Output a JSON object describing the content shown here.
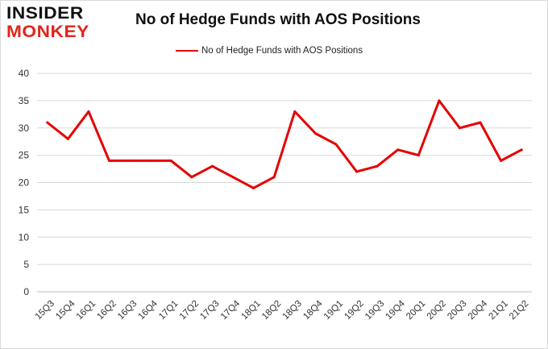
{
  "logo": {
    "line1": "INSIDER",
    "line2": "MONKEY"
  },
  "chart_data": {
    "type": "line",
    "title": "No of Hedge Funds with AOS Positions",
    "xlabel": "",
    "ylabel": "",
    "ylim": [
      0,
      40
    ],
    "yticks": [
      0,
      5,
      10,
      15,
      20,
      25,
      30,
      35,
      40
    ],
    "grid": true,
    "legend_position": "top-center",
    "categories": [
      "15Q3",
      "15Q4",
      "16Q1",
      "16Q2",
      "16Q3",
      "16Q4",
      "17Q1",
      "17Q2",
      "17Q3",
      "17Q4",
      "18Q1",
      "18Q2",
      "18Q3",
      "18Q4",
      "19Q1",
      "19Q2",
      "19Q3",
      "19Q4",
      "20Q1",
      "20Q2",
      "20Q3",
      "20Q4",
      "21Q1",
      "21Q2"
    ],
    "series": [
      {
        "name": "No of Hedge Funds with AOS Positions",
        "color": "#e60000",
        "values": [
          31,
          28,
          33,
          24,
          24,
          24,
          24,
          21,
          23,
          21,
          19,
          21,
          33,
          29,
          27,
          22,
          23,
          26,
          25,
          35,
          30,
          31,
          24,
          26
        ]
      }
    ]
  }
}
